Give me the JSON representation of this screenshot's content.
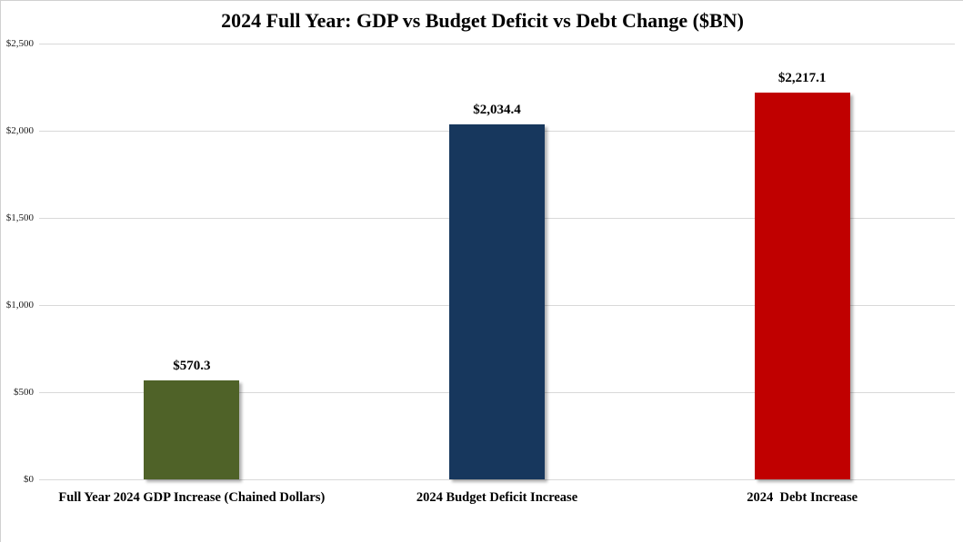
{
  "chart_data": {
    "type": "bar",
    "title": "2024 Full Year: GDP vs Budget Deficit vs Debt Change ($BN)",
    "categories": [
      "Full Year 2024 GDP Increase (Chained Dollars)",
      "2024 Budget Deficit Increase",
      "2024  Debt Increase"
    ],
    "values": [
      570.3,
      2034.4,
      2217.1
    ],
    "value_labels": [
      "$570.3",
      "$2,034.4",
      "$2,217.1"
    ],
    "bar_colors": [
      "#4F6228",
      "#17375D",
      "#C00000"
    ],
    "xlabel": "",
    "ylabel": "",
    "ylim": [
      0,
      2500
    ],
    "yticks": [
      {
        "value": 0,
        "label": "$0"
      },
      {
        "value": 500,
        "label": "$500"
      },
      {
        "value": 1000,
        "label": "$1,000"
      },
      {
        "value": 1500,
        "label": "$1,500"
      },
      {
        "value": 2000,
        "label": "$2,000"
      },
      {
        "value": 2500,
        "label": "$2,500"
      }
    ],
    "grid": true,
    "legend": false
  },
  "colors": {
    "background": "#FFFFFF",
    "gridline": "#D9D9D9",
    "border": "#D0D0D0",
    "text": "#000000"
  }
}
